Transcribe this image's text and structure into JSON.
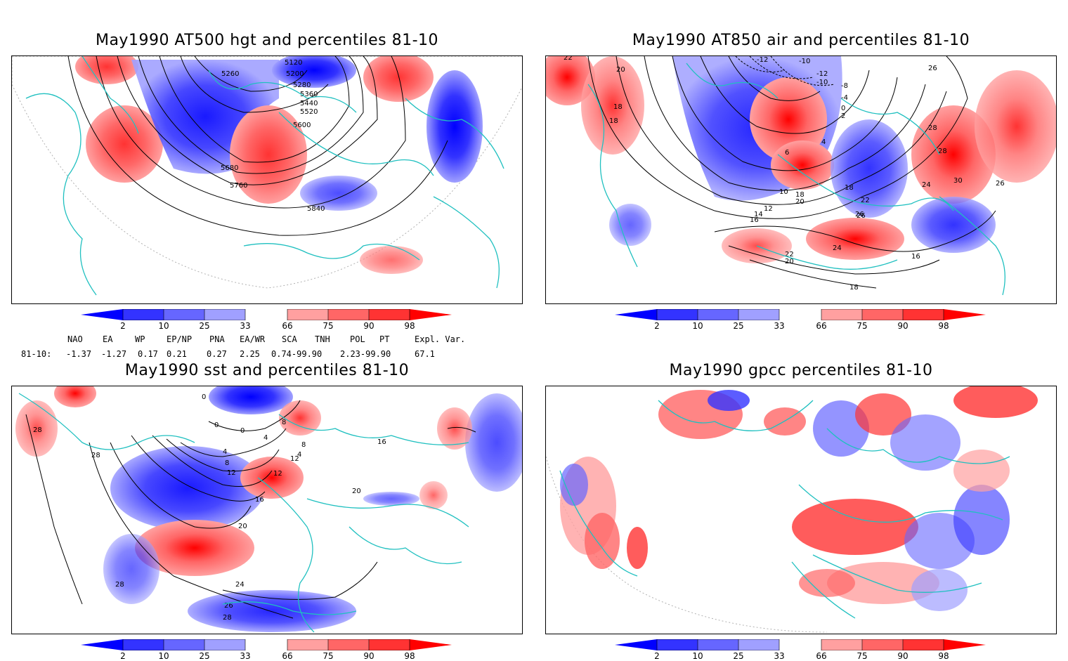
{
  "panels": [
    {
      "title": "May1990 AT500 hgt and percentiles 81-10",
      "contour_labels": [
        "5120",
        "5200",
        "5260",
        "5280",
        "5360",
        "5440",
        "5520",
        "5600",
        "5680",
        "5760",
        "5840"
      ]
    },
    {
      "title": "May1990 AT850 air and percentiles 81-10",
      "contour_labels": [
        "22",
        "20",
        "18",
        "18",
        "-12",
        "-10",
        "-10",
        "-12",
        "-8",
        "-4",
        "0",
        "2",
        "4",
        "6",
        "10",
        "12",
        "14",
        "16",
        "18",
        "20",
        "22",
        "24",
        "26",
        "28",
        "28",
        "30",
        "26",
        "26",
        "18",
        "16",
        "20",
        "22",
        "24",
        "26",
        "28",
        "20",
        "18"
      ]
    },
    {
      "title": "May1990 sst and percentiles 81-10",
      "contour_labels": [
        "0",
        "0",
        "4",
        "8",
        "12",
        "16",
        "20",
        "24",
        "28",
        "28",
        "28",
        "28",
        "26",
        "4",
        "8",
        "12",
        "4",
        "0",
        "8",
        "12",
        "16",
        "20"
      ]
    },
    {
      "title": "May1990 gpcc percentiles 81-10",
      "contour_labels": []
    }
  ],
  "colorbar": {
    "labels": [
      "2",
      "10",
      "25",
      "33",
      "66",
      "75",
      "90",
      "98"
    ],
    "colors": [
      "#0000ff",
      "#3333ff",
      "#6666ff",
      "#a0a0ff",
      "#ffffff",
      "#ffa0a0",
      "#ff6666",
      "#ff3333",
      "#ff0000"
    ]
  },
  "teleconnections": {
    "headers": [
      "NAO",
      "EA",
      "WP",
      "EP/NP",
      "PNA",
      "EA/WR",
      "SCA",
      "TNH",
      "POL",
      "PT",
      "Expl. Var."
    ],
    "row_label": "81-10:",
    "values": [
      "-1.37",
      "-1.27",
      "0.17",
      "0.21",
      "0.27",
      "2.25",
      "0.74-99.90",
      "2.23-99.90",
      "67.1"
    ]
  },
  "colors": {
    "coast": "#20c0c0",
    "pos": "#ff3333",
    "neg": "#3333ff",
    "pos_light": "#ffa0a0",
    "neg_light": "#a0a0ff"
  }
}
